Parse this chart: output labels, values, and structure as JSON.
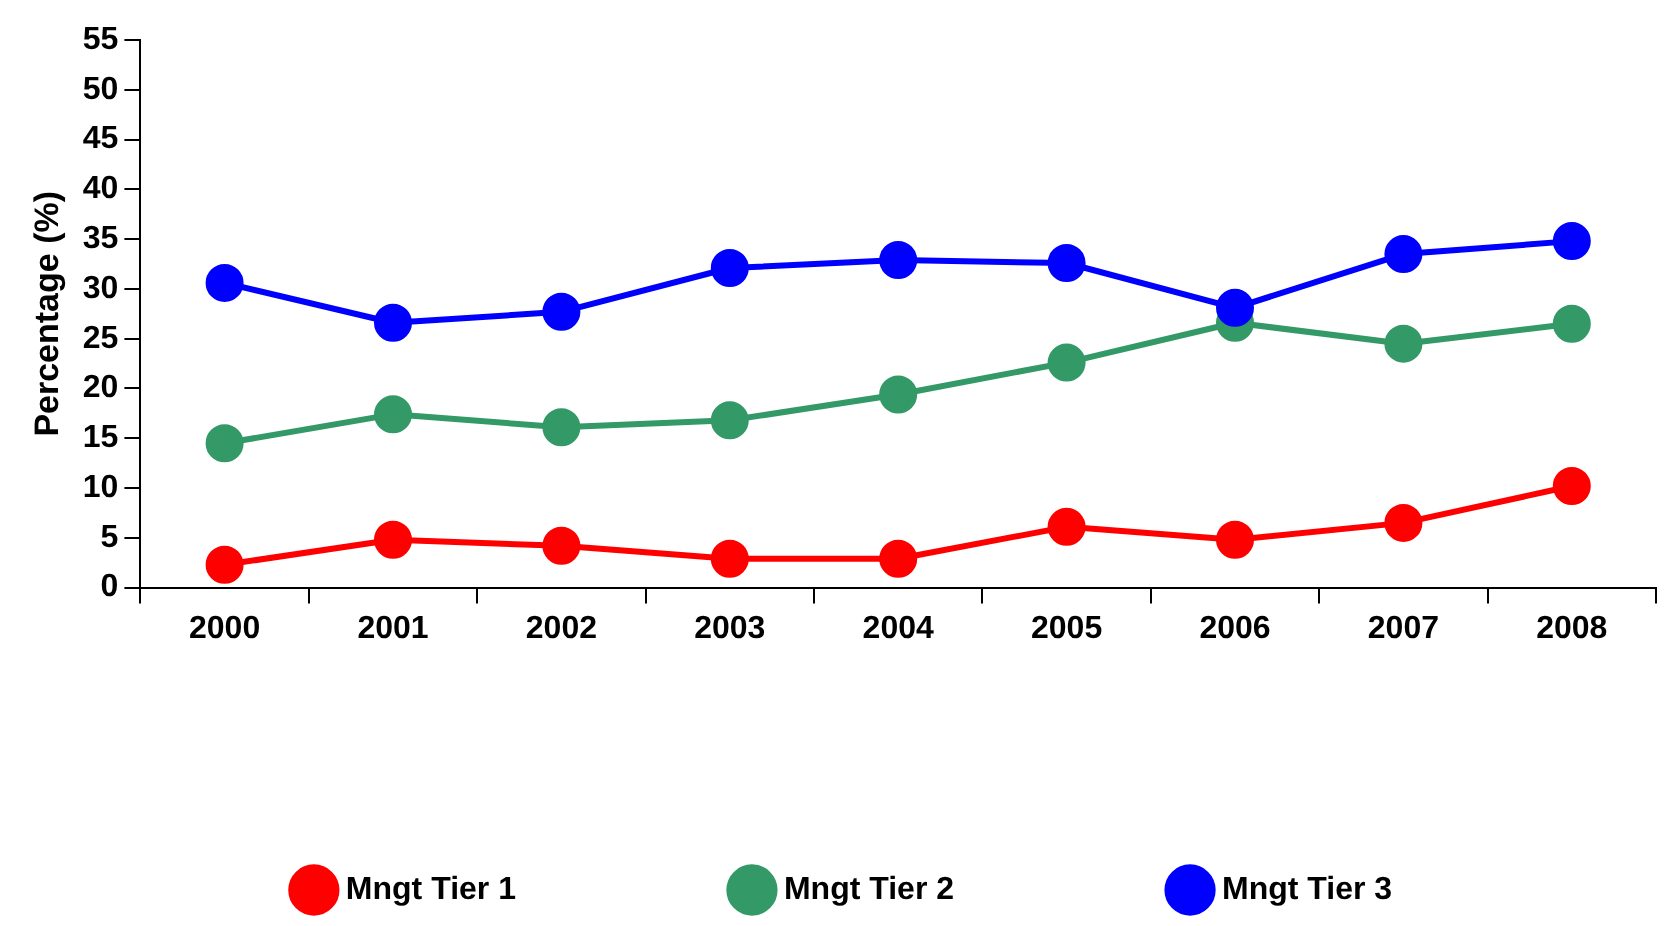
{
  "chart_data": {
    "type": "line",
    "ylabel": "Percentage (%)",
    "categories": [
      "2000",
      "2001",
      "2002",
      "2003",
      "2004",
      "2005",
      "2006",
      "2007",
      "2008"
    ],
    "series": [
      {
        "name": "Mngt Tier 1",
        "color": "#ff0000",
        "values": [
          2.3,
          4.8,
          4.2,
          2.9,
          2.9,
          6.1,
          4.8,
          6.5,
          10.2
        ]
      },
      {
        "name": "Mngt Tier 2",
        "color": "#339966",
        "values": [
          14.5,
          17.4,
          16.1,
          16.8,
          19.4,
          22.6,
          26.6,
          24.5,
          26.5
        ]
      },
      {
        "name": "Mngt Tier 3",
        "color": "#0000ff",
        "values": [
          30.6,
          26.6,
          27.7,
          32.1,
          32.9,
          32.6,
          28.1,
          33.5,
          34.8
        ]
      }
    ],
    "ylim": [
      0,
      55
    ],
    "yticks": [
      0,
      5,
      10,
      15,
      20,
      25,
      30,
      35,
      40,
      45,
      50,
      55
    ],
    "grid": false,
    "legend": "bottom",
    "marker": "circle",
    "line_style": "solid"
  }
}
